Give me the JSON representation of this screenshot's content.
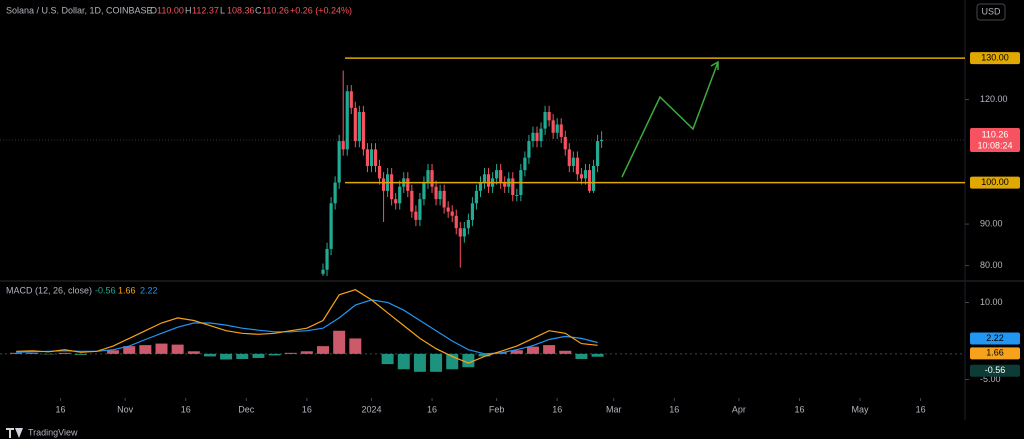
{
  "header": {
    "title": "Solana / U.S. Dollar, 1D, COINBASE",
    "ohlc": [
      {
        "label": "O",
        "value": "110.00"
      },
      {
        "label": "H",
        "value": "112.37"
      },
      {
        "label": "L",
        "value": "108.36"
      },
      {
        "label": "C",
        "value": "110.26"
      }
    ],
    "change": "+0.26 (+0.24%)",
    "currency": "USD",
    "brand": "TradingView"
  },
  "chart_data": [
    {
      "type": "candlestick",
      "up_color": "#22ab94",
      "down_color": "#f7525f",
      "xlim": [
        -92,
        147
      ],
      "ylim": [
        77,
        144
      ],
      "yticks": [
        {
          "value": 80,
          "label": "80.00"
        },
        {
          "value": 90,
          "label": "90.00"
        },
        {
          "value": 120,
          "label": "120.00"
        }
      ],
      "levels": [
        {
          "value": 130,
          "label": "130.00"
        },
        {
          "value": 100,
          "label": "100.00"
        }
      ],
      "level_color": "#e0a800",
      "last_price": {
        "value": 110.26,
        "label": "110.26",
        "countdown": "10:08:24"
      },
      "x": [
        -12,
        -11,
        -10,
        -9,
        -8,
        -7,
        -6,
        -5,
        -4,
        -3,
        -2,
        -1,
        0,
        1,
        2,
        3,
        4,
        5,
        6,
        7,
        8,
        9,
        10,
        11,
        12,
        13,
        14,
        15,
        16,
        17,
        18,
        19,
        20,
        21,
        22,
        23,
        24,
        25,
        26,
        27,
        28,
        29,
        30,
        31,
        32,
        33,
        34,
        35,
        36,
        37,
        38,
        39,
        40,
        41,
        42,
        43,
        44,
        45,
        46,
        47,
        48,
        49,
        50,
        51,
        52,
        53,
        54,
        55,
        56,
        57
      ],
      "open": [
        78,
        79,
        84,
        95,
        100,
        110,
        108,
        122,
        118,
        110,
        117,
        108,
        104,
        108,
        104,
        101,
        98,
        102,
        96,
        95,
        99,
        101,
        98,
        93,
        91,
        96,
        100,
        103,
        99,
        96,
        98,
        94,
        93,
        92,
        89,
        87,
        89,
        91,
        95,
        98,
        100,
        102,
        99,
        101,
        103,
        100,
        99,
        101,
        97,
        97,
        103,
        106,
        110,
        112,
        110,
        113,
        117,
        115,
        112,
        114,
        111,
        108,
        104,
        106,
        102,
        101,
        103,
        98,
        104,
        110
      ],
      "high": [
        80.5,
        85.5,
        96.5,
        101.5,
        111.5,
        127,
        123.5,
        123.5,
        119.5,
        118.5,
        118.5,
        109.5,
        109.5,
        109.5,
        105.5,
        102.5,
        103.5,
        103.5,
        97.5,
        100.5,
        102.5,
        102.5,
        99.5,
        94.5,
        97.5,
        101.5,
        104.5,
        104.5,
        100.5,
        99.5,
        99.5,
        95.5,
        94.5,
        93.5,
        90.5,
        90.5,
        92.5,
        96.5,
        99.5,
        101.5,
        103.5,
        103.5,
        102.5,
        104.5,
        104.5,
        101.5,
        102.5,
        102.5,
        98.5,
        104.5,
        107.5,
        111.5,
        113.5,
        113.5,
        114.5,
        118.5,
        118.5,
        116.5,
        115.5,
        115.5,
        112.5,
        109.5,
        107.5,
        107.5,
        103.5,
        104.5,
        104.5,
        105.5,
        111.5,
        112.37
      ],
      "low": [
        77.5,
        77.5,
        82.5,
        93.5,
        98.5,
        106.5,
        106.5,
        116.5,
        108.5,
        108.5,
        106.5,
        102.5,
        102.5,
        102.5,
        99.5,
        90.5,
        96.5,
        94.5,
        93.5,
        93.5,
        97.5,
        96.5,
        91.5,
        89.5,
        89.5,
        94.5,
        98.5,
        97.5,
        94.5,
        94.5,
        92.5,
        91.5,
        90.5,
        87.5,
        79.5,
        85.5,
        87.5,
        89.5,
        93.5,
        96.5,
        98.5,
        97.5,
        97.5,
        99.5,
        98.5,
        97.5,
        97.5,
        95.5,
        95.5,
        95.5,
        101.5,
        104.5,
        108.5,
        108.5,
        108.5,
        111.5,
        113.5,
        110.5,
        110.5,
        109.5,
        106.5,
        102.5,
        102.5,
        100.5,
        99.5,
        99.5,
        97.5,
        97.5,
        102.5,
        108.36
      ],
      "close": [
        79,
        84,
        95,
        100,
        110,
        108,
        122,
        118,
        110,
        117,
        108,
        104,
        108,
        104,
        101,
        98,
        102,
        96,
        95,
        99,
        101,
        98,
        93,
        91,
        96,
        100,
        103,
        99,
        96,
        98,
        94,
        93,
        92,
        89,
        87,
        89,
        91,
        95,
        98,
        100,
        102,
        99,
        101,
        103,
        100,
        99,
        101,
        97,
        97,
        103,
        106,
        110,
        112,
        110,
        113,
        117,
        115,
        112,
        114,
        111,
        108,
        104,
        106,
        102,
        101,
        103,
        98,
        104,
        110,
        110.26
      ]
    },
    {
      "type": "macd",
      "title": "MACD (12, 26, close)",
      "xlim": [
        -92,
        147
      ],
      "ylim": [
        -8.6,
        13.8
      ],
      "yticks": [
        {
          "value": 10,
          "label": "10.00"
        },
        {
          "value": -5,
          "label": "-5.00"
        }
      ],
      "xticks": [
        {
          "value": -77,
          "label": "16"
        },
        {
          "value": -61,
          "label": "Nov"
        },
        {
          "value": -46,
          "label": "16"
        },
        {
          "value": -31,
          "label": "Dec"
        },
        {
          "value": -16,
          "label": "16"
        },
        {
          "value": 0,
          "label": "2024"
        },
        {
          "value": 15,
          "label": "16"
        },
        {
          "value": 31,
          "label": "Feb"
        },
        {
          "value": 46,
          "label": "16"
        },
        {
          "value": 60,
          "label": "Mar"
        },
        {
          "value": 75,
          "label": "16"
        },
        {
          "value": 91,
          "label": "Apr"
        },
        {
          "value": 106,
          "label": "16"
        },
        {
          "value": 121,
          "label": "May"
        },
        {
          "value": 136,
          "label": "16"
        }
      ],
      "x": [
        -88,
        -84,
        -80,
        -76,
        -72,
        -68,
        -64,
        -60,
        -56,
        -52,
        -48,
        -44,
        -40,
        -36,
        -32,
        -28,
        -24,
        -20,
        -16,
        -12,
        -8,
        -4,
        0,
        4,
        8,
        12,
        16,
        20,
        24,
        28,
        32,
        36,
        40,
        44,
        48,
        52,
        56
      ],
      "histogram": {
        "up_color": "#f06a7d",
        "down_color": "#22ab94",
        "values": [
          0.2,
          0.2,
          -0.1,
          0.2,
          -0.2,
          0,
          0.7,
          1.5,
          1.7,
          2.0,
          1.8,
          0.5,
          -0.5,
          -1.1,
          -1.0,
          -0.8,
          -0.3,
          0.2,
          0.5,
          1.5,
          4.5,
          3.0,
          0,
          -2.0,
          -3.0,
          -3.5,
          -3.5,
          -3.0,
          -2.6,
          -0.5,
          0.3,
          0.7,
          1.4,
          1.7,
          0.6,
          -1.0,
          -0.56
        ],
        "last_label": "-0.56"
      },
      "macd": {
        "color": "#f7a21b",
        "values": [
          0.5,
          0.6,
          0.4,
          0.8,
          0.3,
          0.5,
          1.5,
          3.0,
          4.5,
          6.0,
          7.0,
          6.5,
          5.5,
          4.5,
          4.0,
          3.8,
          4.0,
          4.5,
          5.0,
          6.5,
          11.5,
          12.5,
          10.5,
          8.0,
          5.5,
          3.0,
          1.0,
          -0.5,
          -1.8,
          -0.5,
          0.5,
          1.5,
          3.0,
          4.5,
          4.0,
          2.0,
          1.66
        ],
        "last_label": "1.66"
      },
      "signal": {
        "color": "#2196f3",
        "values": [
          0.3,
          0.4,
          0.5,
          0.6,
          0.5,
          0.5,
          0.8,
          1.5,
          2.8,
          4.0,
          5.2,
          6.0,
          6.0,
          5.6,
          5.0,
          4.6,
          4.3,
          4.3,
          4.5,
          5.0,
          7.0,
          9.5,
          10.5,
          10.0,
          8.5,
          6.5,
          4.5,
          2.5,
          0.8,
          0.0,
          0.2,
          0.8,
          1.6,
          2.8,
          3.4,
          3.0,
          2.22
        ],
        "last_label": "2.22"
      }
    }
  ]
}
